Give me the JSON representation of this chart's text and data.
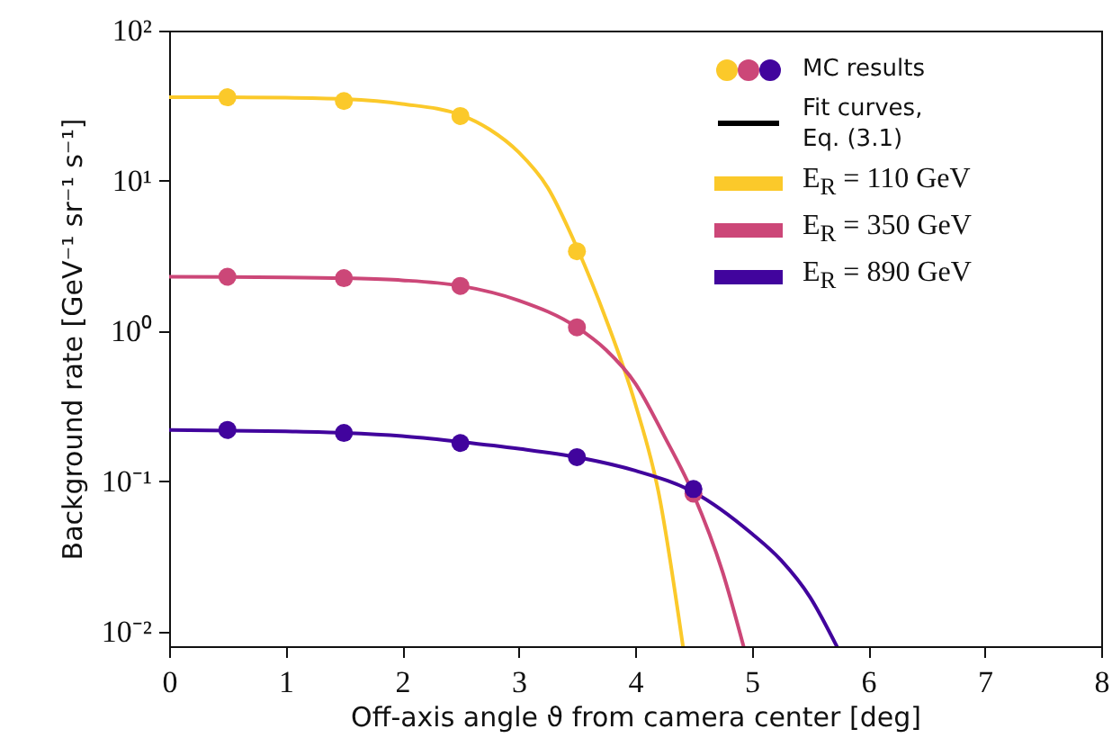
{
  "chart_data": {
    "type": "line",
    "xlabel": "Off-axis angle ϑ from camera center [deg]",
    "ylabel": "Background rate [GeV⁻¹ sr⁻¹ s⁻¹]",
    "xlim": [
      0,
      8
    ],
    "xticks": [
      0,
      1,
      2,
      3,
      4,
      5,
      6,
      7,
      8
    ],
    "ylim": [
      0.008,
      100
    ],
    "yticks": [
      {
        "value": 0.01,
        "label": "10⁻²"
      },
      {
        "value": 0.1,
        "label": "10⁻¹"
      },
      {
        "value": 1,
        "label": "10⁰"
      },
      {
        "value": 10,
        "label": "10¹"
      },
      {
        "value": 100,
        "label": "10²"
      }
    ],
    "log": "y",
    "grid": false,
    "legend": "top right",
    "marker": "none",
    "line_style": "solid",
    "annotations": [
      "Fit curves, Eq. (3.1)"
    ],
    "series": [
      {
        "name": "E$_{R}$ = 110 GeV",
        "color": "#fbc92a",
        "x": [
          0,
          0.5,
          1,
          1.5,
          2,
          2.5,
          2.75,
          3,
          3.25,
          3.5,
          3.75,
          4,
          4.2,
          4.41
        ],
        "values": [
          36,
          36,
          35.8,
          35,
          32.5,
          27.5,
          22,
          15.5,
          9,
          3.6,
          1.2,
          0.33,
          0.085,
          0.008
        ]
      },
      {
        "name": "E$_{R}$ = 350 GeV",
        "color": "#cc4778",
        "x": [
          0,
          1,
          1.5,
          2,
          2.5,
          3,
          3.5,
          3.75,
          4,
          4.25,
          4.5,
          4.75,
          4.93
        ],
        "values": [
          2.3,
          2.28,
          2.25,
          2.18,
          2,
          1.6,
          1.06,
          0.75,
          0.45,
          0.2,
          0.082,
          0.025,
          0.008
        ]
      },
      {
        "name": "E$_{R}$ = 890 GeV",
        "color": "#41049d",
        "x": [
          0,
          1,
          1.5,
          2,
          2.5,
          3,
          3.5,
          4,
          4.5,
          5,
          5.25,
          5.5,
          5.73
        ],
        "values": [
          0.22,
          0.215,
          0.21,
          0.2,
          0.183,
          0.165,
          0.145,
          0.118,
          0.085,
          0.045,
          0.03,
          0.017,
          0.008
        ]
      },
      {
        "name": "MC results",
        "type": "scatter",
        "marker": "circle",
        "x": [
          0.5,
          1.5,
          2.5,
          3.5,
          0.5,
          1.5,
          2.5,
          3.5,
          4.5,
          0.5,
          1.5,
          2.5,
          3.5,
          4.5
        ],
        "values": [
          36,
          34,
          27,
          3.4,
          2.3,
          2.25,
          2,
          1.06,
          0.083,
          0.22,
          0.21,
          0.18,
          0.145,
          0.089
        ],
        "colors": [
          "#fbc92a",
          "#fbc92a",
          "#fbc92a",
          "#fbc92a",
          "#cc4778",
          "#cc4778",
          "#cc4778",
          "#cc4778",
          "#cc4778",
          "#41049d",
          "#41049d",
          "#41049d",
          "#41049d",
          "#41049d"
        ]
      }
    ]
  }
}
